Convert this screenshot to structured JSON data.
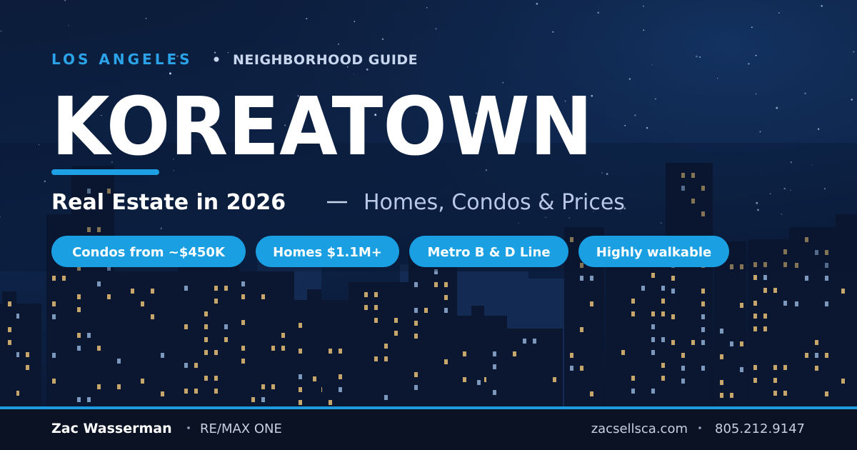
{
  "eyebrow": {
    "region": "LOS ANGELES",
    "label": "NEIGHBORHOOD GUIDE"
  },
  "title": "KOREATOWN",
  "subtitle": {
    "main": "Real Estate in 2026",
    "detail": "Homes, Condos & Prices"
  },
  "tags": [
    "Condos from ~$450K",
    "Homes $1.1M+",
    "Metro B & D Line",
    "Highly walkable"
  ],
  "footer": {
    "name": "Zac Wasserman",
    "company": "RE/MAX ONE",
    "website": "zacsellsca.com",
    "phone": "805.212.9147"
  }
}
